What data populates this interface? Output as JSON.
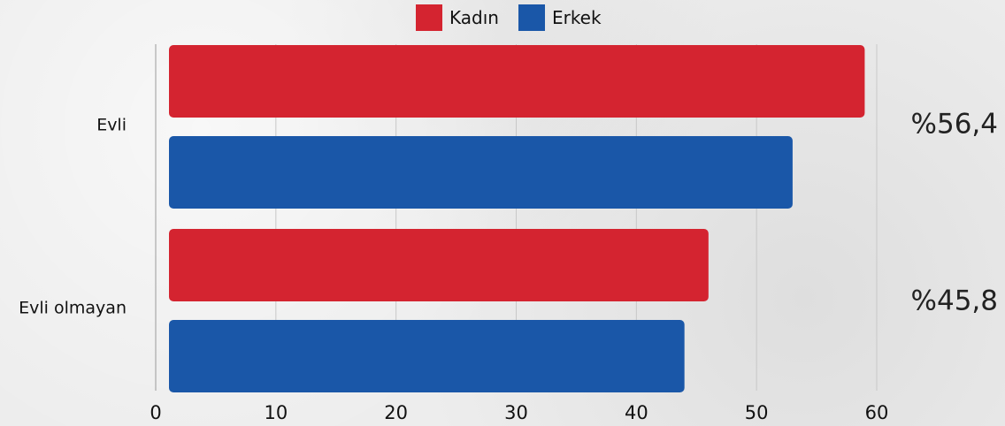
{
  "chart_data": {
    "type": "bar",
    "orientation": "horizontal",
    "categories": [
      "Evli",
      "Evli olmayan"
    ],
    "series": [
      {
        "name": "Kadın",
        "color": "#d42430",
        "values": [
          59,
          46
        ]
      },
      {
        "name": "Erkek",
        "color": "#1a57a8",
        "values": [
          53,
          44
        ]
      }
    ],
    "xlim": [
      0,
      60
    ],
    "xticks": [
      "0",
      "10",
      "20",
      "30",
      "40",
      "50",
      "60"
    ],
    "annotations": [
      "%56,4",
      "%45,8"
    ],
    "legend_position": "top-center",
    "grid": "vertical"
  }
}
